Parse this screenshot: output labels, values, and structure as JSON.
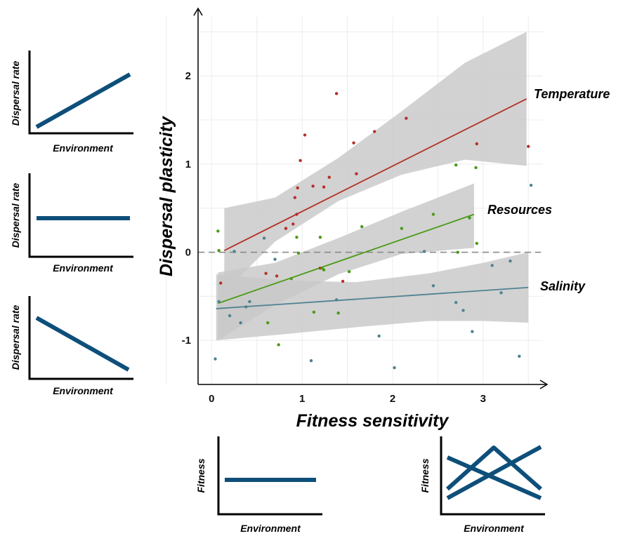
{
  "chart_data": {
    "type": "scatter",
    "title": "",
    "xlabel": "Fitness sensitivity",
    "ylabel": "Dispersal plasticity",
    "xlim": [
      -0.15,
      3.7
    ],
    "ylim": [
      -1.5,
      2.75
    ],
    "x_ticks": [
      "0",
      "1",
      "2",
      "3"
    ],
    "y_ticks": [
      "-1",
      "0",
      "1",
      "2"
    ],
    "reference_line_y": 0,
    "grid": true,
    "colors": {
      "Temperature": "#b5302b",
      "Resources": "#4a9a14",
      "Salinity": "#4f8291",
      "band": "#c8c8c8",
      "reference": "#8a8a8a"
    },
    "series": [
      {
        "name": "Temperature",
        "fit": {
          "x": [
            0.14,
            3.48
          ],
          "y": [
            0.02,
            1.74
          ]
        },
        "ci": {
          "x": [
            0.14,
            0.7,
            1.4,
            2.1,
            2.8,
            3.48
          ],
          "lower": [
            -0.45,
            0.12,
            0.58,
            0.88,
            1.05,
            0.98
          ],
          "upper": [
            0.5,
            0.62,
            1.07,
            1.6,
            2.15,
            2.5
          ]
        },
        "points": [
          [
            0.1,
            -0.35
          ],
          [
            0.6,
            -0.24
          ],
          [
            0.72,
            -0.27
          ],
          [
            0.82,
            0.27
          ],
          [
            0.9,
            0.32
          ],
          [
            0.92,
            0.62
          ],
          [
            0.94,
            0.43
          ],
          [
            0.95,
            0.73
          ],
          [
            0.98,
            1.04
          ],
          [
            1.03,
            1.33
          ],
          [
            1.12,
            0.75
          ],
          [
            1.2,
            -0.18
          ],
          [
            1.24,
            0.74
          ],
          [
            1.3,
            0.85
          ],
          [
            1.38,
            1.8
          ],
          [
            1.45,
            -0.33
          ],
          [
            1.57,
            1.24
          ],
          [
            1.6,
            0.89
          ],
          [
            1.8,
            1.37
          ],
          [
            2.15,
            1.52
          ],
          [
            2.93,
            1.23
          ],
          [
            3.5,
            1.2
          ]
        ]
      },
      {
        "name": "Resources",
        "fit": {
          "x": [
            0.07,
            2.9
          ],
          "y": [
            -0.58,
            0.43
          ]
        },
        "ci": {
          "x": [
            0.07,
            0.7,
            1.4,
            2.1,
            2.9
          ],
          "lower": [
            -1.0,
            -0.6,
            -0.25,
            -0.02,
            0.05
          ],
          "upper": [
            -0.23,
            -0.12,
            0.16,
            0.46,
            0.78
          ]
        },
        "points": [
          [
            0.07,
            0.24
          ],
          [
            0.08,
            0.02
          ],
          [
            0.62,
            -0.8
          ],
          [
            0.74,
            -1.05
          ],
          [
            0.88,
            -0.3
          ],
          [
            0.94,
            0.17
          ],
          [
            0.96,
            -0.01
          ],
          [
            1.13,
            -0.68
          ],
          [
            1.2,
            0.17
          ],
          [
            1.22,
            -0.18
          ],
          [
            1.24,
            -0.2
          ],
          [
            1.4,
            -0.69
          ],
          [
            1.52,
            -0.22
          ],
          [
            1.66,
            0.29
          ],
          [
            2.1,
            0.27
          ],
          [
            2.45,
            0.43
          ],
          [
            2.7,
            0.99
          ],
          [
            2.72,
            0.0
          ],
          [
            2.85,
            0.39
          ],
          [
            2.92,
            0.96
          ],
          [
            2.93,
            0.1
          ]
        ]
      },
      {
        "name": "Salinity",
        "fit": {
          "x": [
            0.05,
            3.5
          ],
          "y": [
            -0.64,
            -0.4
          ]
        },
        "ci": {
          "x": [
            0.05,
            0.8,
            1.6,
            2.4,
            3.0,
            3.5
          ],
          "lower": [
            -1.0,
            -0.93,
            -0.85,
            -0.78,
            -0.78,
            -0.8
          ],
          "upper": [
            -0.25,
            -0.32,
            -0.34,
            -0.24,
            -0.12,
            0.0
          ]
        },
        "points": [
          [
            0.04,
            -1.21
          ],
          [
            0.08,
            -0.56
          ],
          [
            0.2,
            -0.72
          ],
          [
            0.25,
            0.01
          ],
          [
            0.32,
            -0.8
          ],
          [
            0.38,
            -0.62
          ],
          [
            0.42,
            -0.56
          ],
          [
            0.58,
            0.16
          ],
          [
            0.7,
            -0.08
          ],
          [
            1.1,
            -1.23
          ],
          [
            1.38,
            -0.54
          ],
          [
            1.85,
            -0.95
          ],
          [
            2.02,
            -1.31
          ],
          [
            2.35,
            0.01
          ],
          [
            2.45,
            -0.38
          ],
          [
            2.7,
            -0.57
          ],
          [
            2.78,
            -0.66
          ],
          [
            2.88,
            -0.9
          ],
          [
            3.1,
            -0.15
          ],
          [
            3.2,
            -0.46
          ],
          [
            3.3,
            -0.1
          ],
          [
            3.4,
            -1.18
          ],
          [
            3.53,
            0.76
          ]
        ]
      }
    ]
  },
  "mini_panels": {
    "left_top": {
      "ylabel": "Dispersal rate",
      "xlabel": "Environment",
      "trend": "increasing"
    },
    "left_middle": {
      "ylabel": "Dispersal rate",
      "xlabel": "Environment",
      "trend": "flat"
    },
    "left_bottom": {
      "ylabel": "Dispersal rate",
      "xlabel": "Environment",
      "trend": "decreasing"
    },
    "bottom_left": {
      "ylabel": "Fitness",
      "xlabel": "Environment",
      "trend": "flat"
    },
    "bottom_right": {
      "ylabel": "Fitness",
      "xlabel": "Environment",
      "trend": "crossing"
    },
    "line_color": "#0e4f7a"
  }
}
